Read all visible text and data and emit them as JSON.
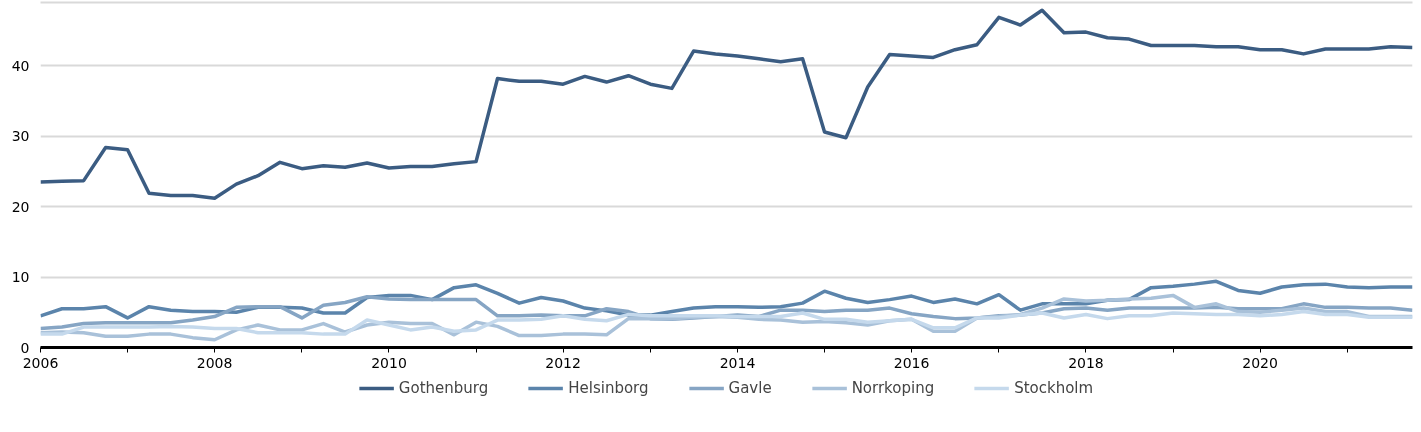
{
  "chart_data": {
    "type": "line",
    "x": [
      "2006-01",
      "2006-04",
      "2006-07",
      "2006-10",
      "2007-01",
      "2007-04",
      "2007-07",
      "2007-10",
      "2008-01",
      "2008-04",
      "2008-07",
      "2008-10",
      "2009-01",
      "2009-04",
      "2009-07",
      "2009-10",
      "2010-01",
      "2010-04",
      "2010-07",
      "2010-10",
      "2011-01",
      "2011-04",
      "2011-07",
      "2011-10",
      "2012-01",
      "2012-04",
      "2012-07",
      "2012-10",
      "2013-01",
      "2013-04",
      "2013-07",
      "2013-10",
      "2014-01",
      "2014-04",
      "2014-07",
      "2014-10",
      "2015-01",
      "2015-04",
      "2015-07",
      "2015-10",
      "2016-01",
      "2016-04",
      "2016-07",
      "2016-10",
      "2017-01",
      "2017-04",
      "2017-07",
      "2017-10",
      "2018-01",
      "2018-04",
      "2018-07",
      "2018-10",
      "2019-01",
      "2019-04",
      "2019-07",
      "2019-10",
      "2020-01",
      "2020-04",
      "2020-07",
      "2020-10",
      "2021-01",
      "2021-04",
      "2021-07",
      "2021-10"
    ],
    "series": [
      {
        "name": "Gothenburg",
        "color": "#3b5c82",
        "values": [
          23.5,
          23.6,
          23.7,
          28.4,
          28.1,
          21.9,
          21.6,
          21.6,
          21.2,
          23.2,
          24.4,
          26.3,
          25.4,
          25.8,
          25.6,
          26.2,
          25.5,
          25.7,
          25.7,
          26.1,
          26.4,
          38.2,
          37.8,
          37.8,
          37.4,
          38.5,
          37.7,
          38.6,
          37.4,
          36.8,
          42.1,
          41.7,
          41.4,
          41.0,
          40.6,
          41.0,
          30.6,
          29.8,
          37.0,
          41.6,
          41.4,
          41.2,
          42.3,
          43.0,
          46.9,
          45.8,
          47.9,
          44.7,
          44.8,
          44.0,
          43.8,
          42.9,
          42.9,
          42.9,
          42.7,
          42.7,
          42.3,
          42.3,
          41.7,
          42.4,
          42.4,
          42.4,
          42.7,
          42.6
        ]
      },
      {
        "name": "Helsinborg",
        "color": "#5b84ab",
        "values": [
          4.5,
          5.5,
          5.5,
          5.8,
          4.2,
          5.8,
          5.3,
          5.1,
          5.1,
          5.0,
          5.7,
          5.7,
          5.6,
          4.9,
          4.9,
          7.1,
          7.4,
          7.4,
          6.8,
          8.5,
          8.9,
          7.7,
          6.3,
          7.1,
          6.6,
          5.6,
          5.2,
          4.6,
          4.6,
          5.1,
          5.6,
          5.8,
          5.8,
          5.7,
          5.8,
          6.3,
          8.0,
          7.0,
          6.4,
          6.8,
          7.3,
          6.4,
          6.9,
          6.2,
          7.5,
          5.3,
          6.2,
          6.2,
          6.2,
          6.7,
          6.8,
          8.5,
          8.7,
          9.0,
          9.4,
          8.1,
          7.7,
          8.6,
          8.9,
          9.0,
          8.6,
          8.5,
          8.6,
          8.6
        ]
      },
      {
        "name": "Gavle",
        "color": "#86a5c4",
        "values": [
          2.7,
          2.9,
          3.4,
          3.5,
          3.5,
          3.5,
          3.5,
          3.9,
          4.4,
          5.7,
          5.8,
          5.8,
          4.2,
          6.0,
          6.4,
          7.2,
          6.9,
          6.8,
          6.8,
          6.8,
          6.8,
          4.5,
          4.5,
          4.6,
          4.5,
          4.5,
          5.5,
          5.1,
          4.1,
          4.0,
          4.2,
          4.4,
          4.6,
          4.4,
          5.3,
          5.3,
          5.1,
          5.3,
          5.3,
          5.6,
          4.8,
          4.4,
          4.1,
          4.2,
          4.5,
          4.6,
          4.9,
          5.5,
          5.6,
          5.3,
          5.6,
          5.6,
          5.6,
          5.6,
          5.7,
          5.5,
          5.5,
          5.5,
          6.2,
          5.7,
          5.7,
          5.6,
          5.6,
          5.3
        ]
      },
      {
        "name": "Norrkoping",
        "color": "#a9c1d9",
        "values": [
          2.1,
          2.2,
          2.1,
          1.6,
          1.6,
          1.9,
          1.9,
          1.4,
          1.1,
          2.5,
          3.2,
          2.5,
          2.5,
          3.4,
          2.2,
          3.2,
          3.6,
          3.4,
          3.4,
          1.8,
          3.6,
          3.0,
          1.7,
          1.7,
          1.9,
          1.9,
          1.8,
          4.1,
          4.1,
          4.1,
          4.3,
          4.4,
          4.3,
          4.0,
          3.9,
          3.6,
          3.7,
          3.5,
          3.2,
          3.8,
          4.0,
          2.3,
          2.3,
          4.2,
          4.4,
          4.7,
          5.6,
          6.9,
          6.6,
          6.7,
          6.9,
          7.0,
          7.4,
          5.7,
          6.2,
          5.1,
          5.0,
          5.3,
          5.6,
          5.1,
          5.1,
          4.4,
          4.4,
          4.4
        ]
      },
      {
        "name": "Stockholm",
        "color": "#c5d9ec",
        "values": [
          1.9,
          1.9,
          2.9,
          2.9,
          2.9,
          2.9,
          3.0,
          2.9,
          2.7,
          2.7,
          2.1,
          2.1,
          2.1,
          1.9,
          1.9,
          3.9,
          3.2,
          2.5,
          2.9,
          2.3,
          2.5,
          3.9,
          3.9,
          4.0,
          4.5,
          4.0,
          3.8,
          4.7,
          4.5,
          4.5,
          4.5,
          4.5,
          4.4,
          4.4,
          4.4,
          4.9,
          4.0,
          4.0,
          3.6,
          3.8,
          4.0,
          2.8,
          2.8,
          4.2,
          4.2,
          4.6,
          4.9,
          4.2,
          4.7,
          4.1,
          4.5,
          4.5,
          4.9,
          4.8,
          4.7,
          4.7,
          4.5,
          4.7,
          5.1,
          4.7,
          4.7,
          4.3,
          4.3,
          4.3
        ]
      }
    ],
    "xlim": [
      "2006-01",
      "2021-10"
    ],
    "xticks": [
      {
        "value": "2006",
        "label": "2006"
      },
      {
        "value": "2007",
        "label": null
      },
      {
        "value": "2008",
        "label": "2008"
      },
      {
        "value": "2009",
        "label": null
      },
      {
        "value": "2010",
        "label": "2010"
      },
      {
        "value": "2011",
        "label": null
      },
      {
        "value": "2012",
        "label": "2012"
      },
      {
        "value": "2013",
        "label": null
      },
      {
        "value": "2014",
        "label": "2014"
      },
      {
        "value": "2015",
        "label": null
      },
      {
        "value": "2016",
        "label": "2016"
      },
      {
        "value": "2017",
        "label": null
      },
      {
        "value": "2018",
        "label": "2018"
      },
      {
        "value": "2019",
        "label": null
      },
      {
        "value": "2020",
        "label": "2020"
      },
      {
        "value": "2021",
        "label": null
      }
    ],
    "ylim": [
      0,
      49
    ],
    "yticks": [
      0,
      10,
      20,
      30,
      40
    ],
    "grid": "y",
    "legend": "bottom",
    "marker": "none",
    "line_style": "solid"
  }
}
